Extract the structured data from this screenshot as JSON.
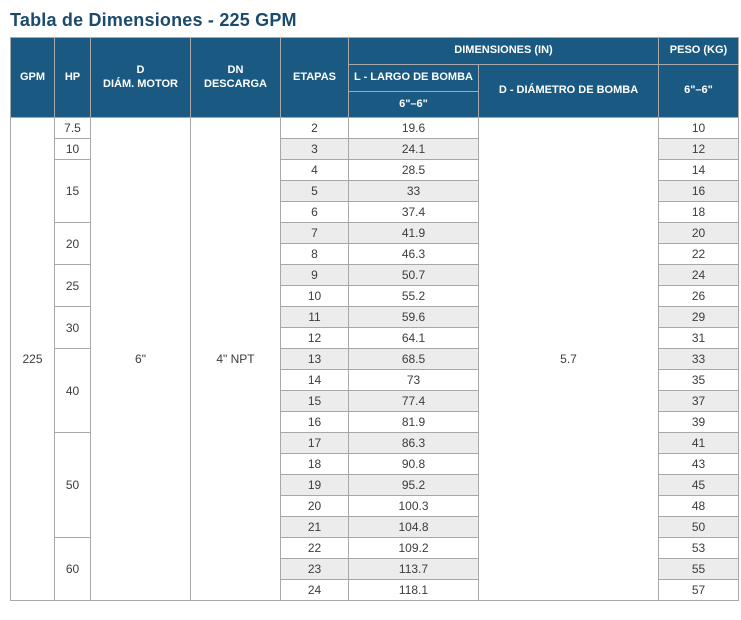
{
  "title": "Tabla de Dimensiones - 225 GPM",
  "colors": {
    "header_bg": "#1a5a82",
    "header_fg": "#ffffff",
    "title_fg": "#1a4a6e",
    "row_alt_bg": "#ececec",
    "row_bg": "#ffffff",
    "border": "#a8a8a8",
    "text": "#3c3c3c"
  },
  "fonts": {
    "title_size_pt": 14,
    "header_size_pt": 8.5,
    "cell_size_pt": 9
  },
  "header": {
    "gpm": "GPM",
    "hp": "HP",
    "diam_motor": "D\nDIÁM. MOTOR",
    "dn_descarga": "DN\nDESCARGA",
    "etapas": "ETAPAS",
    "dimensiones": "DIMENSIONES (IN)",
    "largo_bomba": "L - LARGO DE BOMBA",
    "diam_bomba": "D - DIÁMETRO DE BOMBA",
    "largo_sub": "6\"–6\"",
    "peso": "PESO (KG)",
    "peso_sub": "6\"–6\""
  },
  "body": {
    "gpm": "225",
    "diam_motor": "6\"",
    "dn_descarga": "4\" NPT",
    "diam_bomba": "5.7",
    "hp_groups": [
      {
        "hp": "7.5",
        "span": 1
      },
      {
        "hp": "10",
        "span": 1
      },
      {
        "hp": "15",
        "span": 3
      },
      {
        "hp": "20",
        "span": 2
      },
      {
        "hp": "25",
        "span": 2
      },
      {
        "hp": "30",
        "span": 2
      },
      {
        "hp": "40",
        "span": 4
      },
      {
        "hp": "50",
        "span": 5
      },
      {
        "hp": "60",
        "span": 3
      }
    ],
    "rows": [
      {
        "etapas": "2",
        "largo": "19.6",
        "peso": "10"
      },
      {
        "etapas": "3",
        "largo": "24.1",
        "peso": "12"
      },
      {
        "etapas": "4",
        "largo": "28.5",
        "peso": "14"
      },
      {
        "etapas": "5",
        "largo": "33",
        "peso": "16"
      },
      {
        "etapas": "6",
        "largo": "37.4",
        "peso": "18"
      },
      {
        "etapas": "7",
        "largo": "41.9",
        "peso": "20"
      },
      {
        "etapas": "8",
        "largo": "46.3",
        "peso": "22"
      },
      {
        "etapas": "9",
        "largo": "50.7",
        "peso": "24"
      },
      {
        "etapas": "10",
        "largo": "55.2",
        "peso": "26"
      },
      {
        "etapas": "11",
        "largo": "59.6",
        "peso": "29"
      },
      {
        "etapas": "12",
        "largo": "64.1",
        "peso": "31"
      },
      {
        "etapas": "13",
        "largo": "68.5",
        "peso": "33"
      },
      {
        "etapas": "14",
        "largo": "73",
        "peso": "35"
      },
      {
        "etapas": "15",
        "largo": "77.4",
        "peso": "37"
      },
      {
        "etapas": "16",
        "largo": "81.9",
        "peso": "39"
      },
      {
        "etapas": "17",
        "largo": "86.3",
        "peso": "41"
      },
      {
        "etapas": "18",
        "largo": "90.8",
        "peso": "43"
      },
      {
        "etapas": "19",
        "largo": "95.2",
        "peso": "45"
      },
      {
        "etapas": "20",
        "largo": "100.3",
        "peso": "48"
      },
      {
        "etapas": "21",
        "largo": "104.8",
        "peso": "50"
      },
      {
        "etapas": "22",
        "largo": "109.2",
        "peso": "53"
      },
      {
        "etapas": "23",
        "largo": "113.7",
        "peso": "55"
      },
      {
        "etapas": "24",
        "largo": "118.1",
        "peso": "57"
      }
    ]
  }
}
